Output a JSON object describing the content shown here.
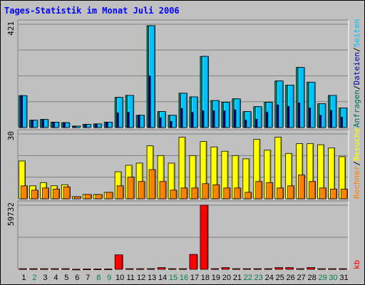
{
  "chart_data": {
    "type": "bar",
    "title": "Tages-Statistik im Monat Juli 2006",
    "categories": [
      "1",
      "2",
      "3",
      "4",
      "5",
      "6",
      "7",
      "8",
      "9",
      "10",
      "11",
      "12",
      "13",
      "14",
      "15",
      "16",
      "17",
      "18",
      "19",
      "20",
      "21",
      "22",
      "23",
      "24",
      "25",
      "26",
      "27",
      "28",
      "29",
      "30",
      "31"
    ],
    "weekend_days": [
      "2",
      "8",
      "9",
      "15",
      "16",
      "22",
      "23",
      "29",
      "30"
    ],
    "colors": {
      "background": "#c0c0c0",
      "panel": "#c0c0c0",
      "weekday_label": "#000000",
      "weekend_label": "#008040",
      "anfragen": "#006e5a",
      "dateien": "#0000a0",
      "seiten": "#00c0ff",
      "besuche": "#ffff00",
      "rechner": "#ff8000",
      "kb": "#ff0000",
      "slash": "#000000",
      "title": "#0000ff"
    },
    "panels": [
      {
        "name": "top",
        "ymax_label": "421",
        "ymax": 421,
        "legend": [
          {
            "label": "Anfragen",
            "color": "#006e5a"
          },
          {
            "label": "Dateien",
            "color": "#0000a0"
          },
          {
            "label": "Seiten",
            "color": "#00c0ff"
          }
        ],
        "series": [
          {
            "name": "Anfragen",
            "values": [
              130,
              30,
              33,
              22,
              20,
              6,
              13,
              15,
              22,
              123,
              131,
              50,
              415,
              65,
              50,
              140,
              125,
              290,
              110,
              103,
              117,
              65,
              85,
              103,
              190,
              173,
              245,
              185,
              97,
              131,
              80
            ]
          },
          {
            "name": "Dateien",
            "values": [
              130,
              28,
              33,
              22,
              20,
              6,
              13,
              15,
              22,
              60,
              62,
              50,
              210,
              40,
              25,
              78,
              62,
              68,
              68,
              68,
              72,
              30,
              34,
              62,
              92,
              86,
              100,
              80,
              50,
              70,
              42
            ]
          },
          {
            "name": "Seiten",
            "values": [
              130,
              30,
              33,
              22,
              20,
              6,
              13,
              15,
              22,
              123,
              131,
              50,
              415,
              65,
              50,
              140,
              125,
              290,
              110,
              103,
              117,
              65,
              85,
              103,
              190,
              173,
              245,
              185,
              97,
              131,
              80
            ]
          }
        ]
      },
      {
        "name": "middle",
        "ymax_label": "30",
        "ymax": 30,
        "legend": [
          {
            "label": "Rechner",
            "color": "#ff8000"
          },
          {
            "label": "Besuche",
            "color": "#ffff00"
          }
        ],
        "series": [
          {
            "name": "Besuche",
            "values": [
              17.5,
              6,
              7.5,
              6,
              6.5,
              1,
              2,
              2,
              3,
              12.5,
              15.5,
              16.5,
              24.5,
              20,
              16.5,
              28.5,
              20,
              26.5,
              24,
              22,
              20,
              18.5,
              27.5,
              22.5,
              28.5,
              21,
              25.5,
              25.5,
              25,
              23.5,
              19.5
            ]
          },
          {
            "name": "Rechner",
            "values": [
              6,
              4,
              5,
              4.5,
              5.5,
              1,
              2,
              2,
              3,
              6,
              10,
              8,
              13.5,
              8,
              4,
              5,
              5,
              7,
              6.5,
              5,
              5,
              3,
              8,
              7.5,
              5,
              6,
              11,
              8,
              5,
              4.5,
              4.5
            ]
          }
        ]
      },
      {
        "name": "bottom",
        "ymax_label": "59732",
        "ymax": 59732,
        "legend": [
          {
            "label": "kb",
            "color": "#ff0000"
          }
        ],
        "series": [
          {
            "name": "kb",
            "values": [
              600,
              600,
              600,
              600,
              600,
              100,
              300,
              300,
              300,
              13500,
              600,
              600,
              600,
              1600,
              600,
              600,
              13900,
              59732,
              600,
              1600,
              600,
              600,
              600,
              600,
              1600,
              1600,
              600,
              1600,
              600,
              600,
              600
            ]
          }
        ]
      }
    ]
  }
}
